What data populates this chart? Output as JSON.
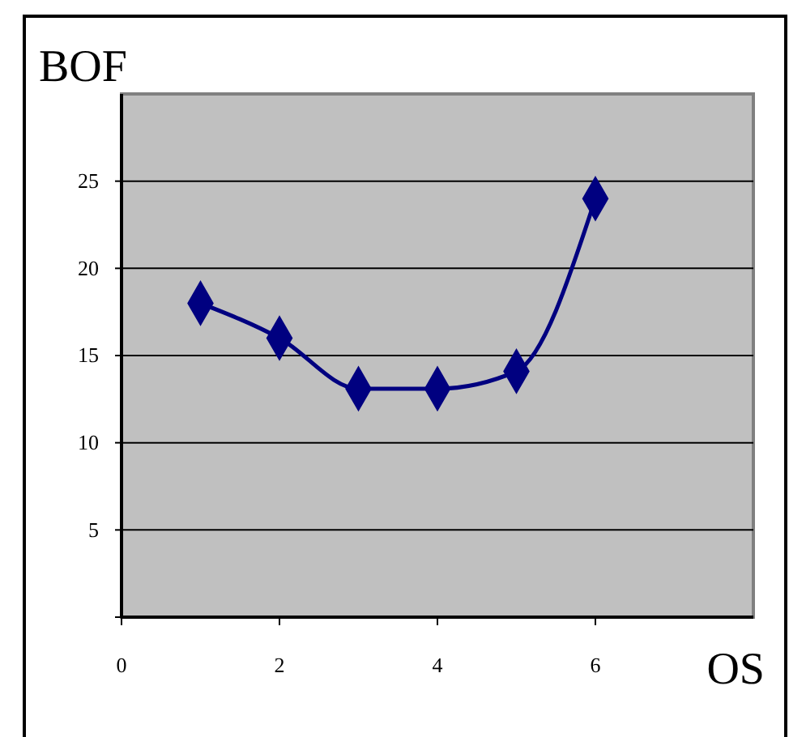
{
  "chart_data": {
    "type": "line",
    "xlabel": "OS",
    "ylabel": "BOF",
    "x": [
      1,
      2,
      3,
      4,
      5,
      6
    ],
    "series": [
      {
        "color": "#000080",
        "values": [
          18,
          16,
          13.1,
          13.1,
          14.1,
          24
        ]
      }
    ],
    "xlim": [
      0,
      8
    ],
    "xticks": [
      0,
      2,
      4,
      6
    ],
    "ylim": [
      0,
      30
    ],
    "yticks": [
      {
        "value": 0,
        "label": null
      },
      5,
      10,
      15,
      20,
      25
    ],
    "grid": "y",
    "marker": "diamond",
    "line_style": "solid"
  }
}
